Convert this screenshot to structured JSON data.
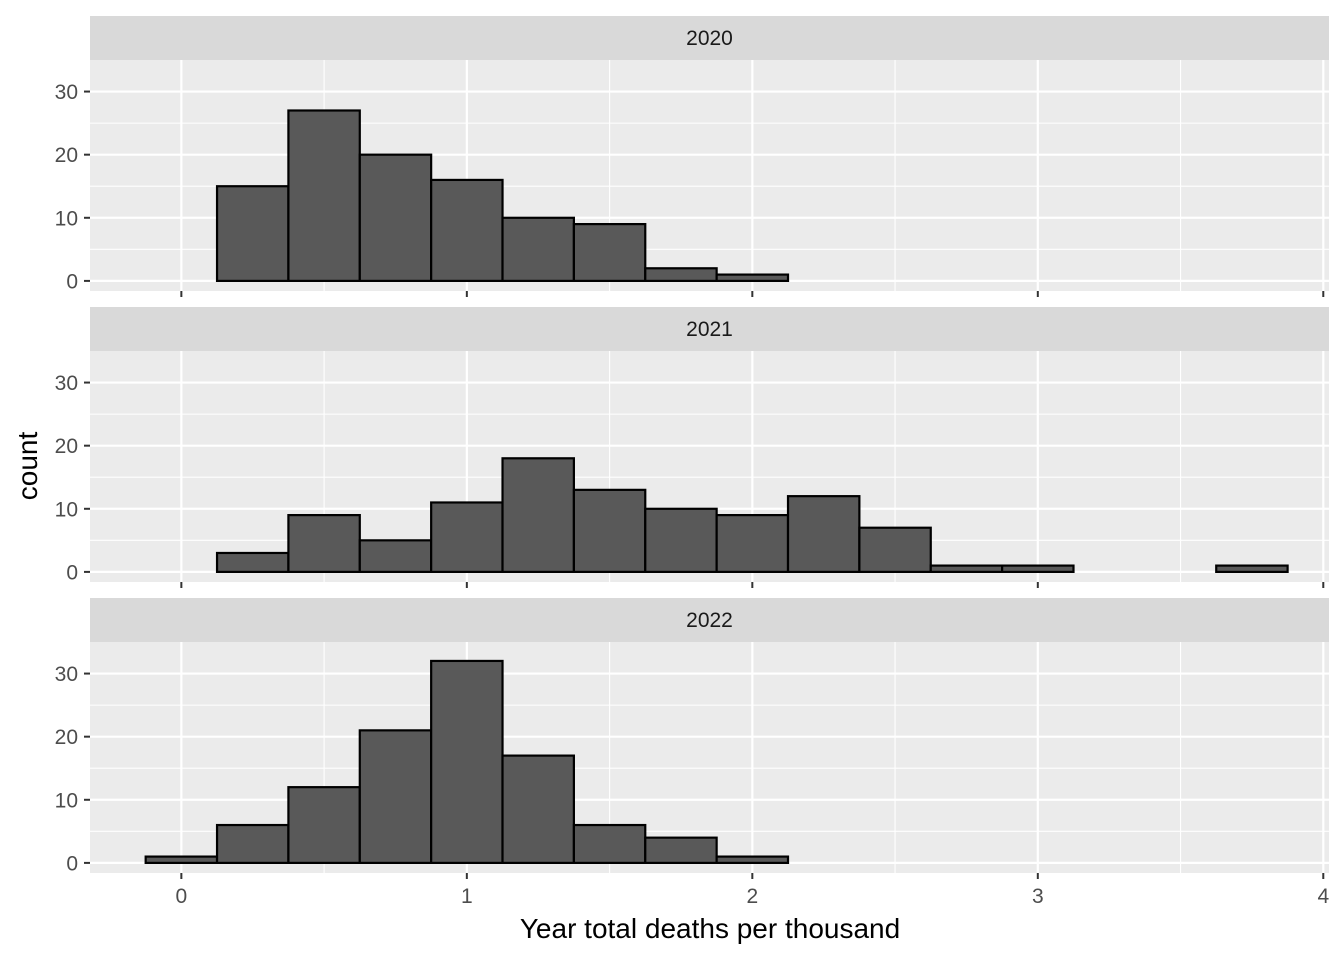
{
  "chart_data": {
    "type": "histogram",
    "xlabel": "Year total deaths per thousand",
    "ylabel": "count",
    "x_ticks": [
      0,
      1,
      2,
      3,
      4
    ],
    "y_ticks": [
      0,
      10,
      20,
      30
    ],
    "xlim": [
      -0.32,
      4.02
    ],
    "ylim": [
      -1.6,
      35.0
    ],
    "bin_width": 0.25,
    "bin_start": -0.125,
    "bar_fill": "#595959",
    "bar_outline": "#000000",
    "panel_background": "#ebebeb",
    "strip_background": "#d9d9d9",
    "grid": true,
    "facets": [
      {
        "label": "2020",
        "counts": [
          0,
          15,
          27,
          20,
          16,
          10,
          9,
          2,
          1,
          0,
          0,
          0,
          0,
          0,
          0,
          0
        ]
      },
      {
        "label": "2021",
        "counts": [
          0,
          3,
          9,
          5,
          11,
          18,
          13,
          10,
          9,
          12,
          7,
          1,
          1,
          0,
          0,
          1
        ]
      },
      {
        "label": "2022",
        "counts": [
          1,
          6,
          12,
          21,
          32,
          17,
          6,
          4,
          1,
          0,
          0,
          0,
          0,
          0,
          0,
          0
        ]
      }
    ]
  }
}
